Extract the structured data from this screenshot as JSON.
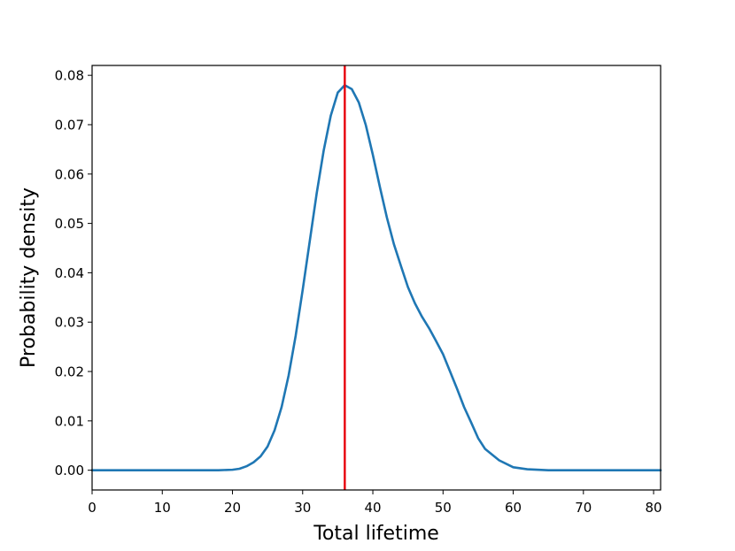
{
  "chart_data": {
    "type": "line",
    "xlabel": "Total lifetime",
    "ylabel": "Probability density",
    "xlim": [
      0,
      81
    ],
    "ylim": [
      -0.004,
      0.082
    ],
    "grid": false,
    "x_ticks": [
      "0",
      "10",
      "20",
      "30",
      "40",
      "50",
      "60",
      "70",
      "80"
    ],
    "y_ticks": [
      "0.00",
      "0.01",
      "0.02",
      "0.03",
      "0.04",
      "0.05",
      "0.06",
      "0.07",
      "0.08"
    ],
    "series": [
      {
        "color": "#1f77b4",
        "x": [
          0,
          5,
          10,
          15,
          18,
          20,
          21,
          22,
          23,
          24,
          25,
          26,
          27,
          28,
          29,
          30,
          31,
          32,
          33,
          34,
          35,
          36,
          37,
          38,
          39,
          40,
          41,
          42,
          43,
          44,
          45,
          46,
          47,
          48,
          49,
          50,
          51,
          52,
          53,
          54,
          55,
          56,
          58,
          60,
          62,
          65,
          70,
          75,
          81
        ],
        "y": [
          0.0,
          0.0,
          0.0,
          0.0,
          0.0,
          0.0001,
          0.0003,
          0.0008,
          0.0016,
          0.0028,
          0.0048,
          0.0081,
          0.0128,
          0.0192,
          0.0272,
          0.0365,
          0.0463,
          0.0561,
          0.0648,
          0.0718,
          0.0765,
          0.078,
          0.0772,
          0.0745,
          0.0699,
          0.0639,
          0.0574,
          0.0512,
          0.0458,
          0.0414,
          0.0371,
          0.0338,
          0.0311,
          0.0288,
          0.0262,
          0.0235,
          0.02,
          0.0165,
          0.0128,
          0.0097,
          0.0065,
          0.0043,
          0.002,
          0.0006,
          0.0002,
          0.0,
          0.0,
          0.0,
          0.0
        ]
      }
    ],
    "vline": {
      "x": 36,
      "color": "#e8000b"
    }
  }
}
